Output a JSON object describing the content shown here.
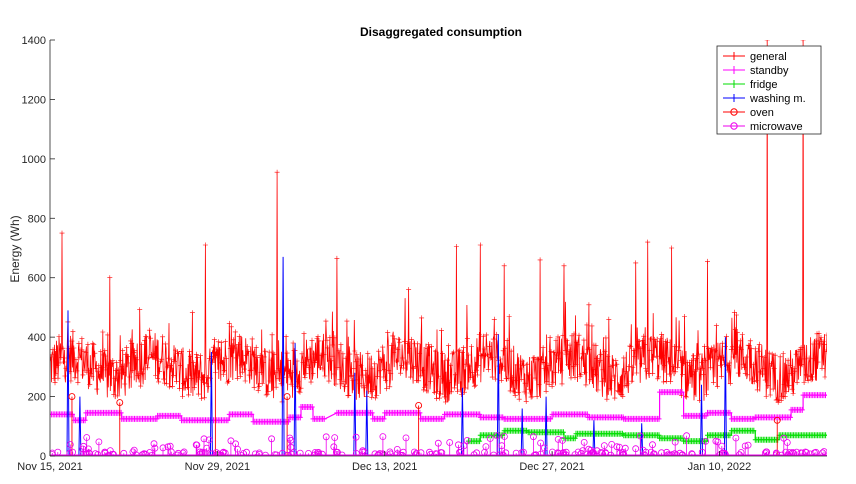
{
  "chart_data": {
    "type": "line",
    "title": "Disaggregated consumption",
    "xlabel": "",
    "ylabel": "Energy (Wh)",
    "ylim": [
      0,
      1400
    ],
    "yticks": [
      0,
      200,
      400,
      600,
      800,
      1000,
      1200,
      1400
    ],
    "x_range": [
      "2021-11-15",
      "2022-01-19"
    ],
    "xticks": [
      "Nov 15, 2021",
      "Nov 29, 2021",
      "Dec 13, 2021",
      "Dec 27, 2021",
      "Jan 10, 2022"
    ],
    "legend_position": "top-right",
    "grid": false,
    "series": [
      {
        "name": "general",
        "color": "#ff0000",
        "marker": "plus",
        "style": "noisy",
        "description_values": {
          "baseline": 300,
          "min": 150,
          "spikes": [
            {
              "date": "2021-11-16",
              "value": 750
            },
            {
              "date": "2021-11-20",
              "value": 600
            },
            {
              "date": "2021-11-28",
              "value": 710
            },
            {
              "date": "2021-12-04",
              "value": 955
            },
            {
              "date": "2021-12-09",
              "value": 665
            },
            {
              "date": "2021-12-15",
              "value": 560
            },
            {
              "date": "2021-12-19",
              "value": 705
            },
            {
              "date": "2021-12-21",
              "value": 710
            },
            {
              "date": "2021-12-23",
              "value": 640
            },
            {
              "date": "2021-12-26",
              "value": 660
            },
            {
              "date": "2021-12-28",
              "value": 640
            },
            {
              "date": "2022-01-03",
              "value": 650
            },
            {
              "date": "2022-01-04",
              "value": 720
            },
            {
              "date": "2022-01-06",
              "value": 700
            },
            {
              "date": "2022-01-09",
              "value": 655
            },
            {
              "date": "2022-01-14",
              "value": 1400
            },
            {
              "date": "2022-01-17",
              "value": 1400
            }
          ]
        }
      },
      {
        "name": "standby",
        "color": "#ff00ff",
        "marker": "plus",
        "style": "steps",
        "steps": [
          {
            "start": "2021-11-15",
            "end": "2021-11-17",
            "value": 140
          },
          {
            "start": "2021-11-17",
            "end": "2021-11-18",
            "value": 120
          },
          {
            "start": "2021-11-18",
            "end": "2021-11-21",
            "value": 145
          },
          {
            "start": "2021-11-21",
            "end": "2021-11-24",
            "value": 125
          },
          {
            "start": "2021-11-24",
            "end": "2021-11-26",
            "value": 135
          },
          {
            "start": "2021-11-26",
            "end": "2021-11-30",
            "value": 120
          },
          {
            "start": "2021-11-30",
            "end": "2021-12-02",
            "value": 140
          },
          {
            "start": "2021-12-02",
            "end": "2021-12-05",
            "value": 115
          },
          {
            "start": "2021-12-05",
            "end": "2021-12-06",
            "value": 130
          },
          {
            "start": "2021-12-06",
            "end": "2021-12-07",
            "value": 165
          },
          {
            "start": "2021-12-07",
            "end": "2021-12-08",
            "value": 125
          },
          {
            "start": "2021-12-09",
            "end": "2021-12-12",
            "value": 145
          },
          {
            "start": "2021-12-12",
            "end": "2021-12-13",
            "value": 125
          },
          {
            "start": "2021-12-13",
            "end": "2021-12-16",
            "value": 145
          },
          {
            "start": "2021-12-16",
            "end": "2021-12-18",
            "value": 125
          },
          {
            "start": "2021-12-18",
            "end": "2021-12-21",
            "value": 140
          },
          {
            "start": "2021-12-21",
            "end": "2021-12-23",
            "value": 130
          },
          {
            "start": "2021-12-23",
            "end": "2021-12-27",
            "value": 125
          },
          {
            "start": "2021-12-27",
            "end": "2021-12-30",
            "value": 140
          },
          {
            "start": "2021-12-30",
            "end": "2022-01-02",
            "value": 130
          },
          {
            "start": "2022-01-02",
            "end": "2022-01-05",
            "value": 125
          },
          {
            "start": "2022-01-05",
            "end": "2022-01-07",
            "value": 215
          },
          {
            "start": "2022-01-07",
            "end": "2022-01-09",
            "value": 135
          },
          {
            "start": "2022-01-09",
            "end": "2022-01-11",
            "value": 145
          },
          {
            "start": "2022-01-11",
            "end": "2022-01-13",
            "value": 125
          },
          {
            "start": "2022-01-13",
            "end": "2022-01-16",
            "value": 130
          },
          {
            "start": "2022-01-16",
            "end": "2022-01-17",
            "value": 155
          },
          {
            "start": "2022-01-17",
            "end": "2022-01-19",
            "value": 205
          }
        ]
      },
      {
        "name": "fridge",
        "color": "#00dd00",
        "marker": "plus",
        "style": "steps",
        "steps": [
          {
            "start": "2021-12-20",
            "end": "2021-12-21",
            "value": 50
          },
          {
            "start": "2021-12-21",
            "end": "2021-12-23",
            "value": 70
          },
          {
            "start": "2021-12-23",
            "end": "2021-12-25",
            "value": 85
          },
          {
            "start": "2021-12-25",
            "end": "2021-12-28",
            "value": 80
          },
          {
            "start": "2021-12-28",
            "end": "2021-12-29",
            "value": 60
          },
          {
            "start": "2021-12-29",
            "end": "2022-01-02",
            "value": 75
          },
          {
            "start": "2022-01-02",
            "end": "2022-01-05",
            "value": 70
          },
          {
            "start": "2022-01-05",
            "end": "2022-01-07",
            "value": 60
          },
          {
            "start": "2022-01-07",
            "end": "2022-01-09",
            "value": 50
          },
          {
            "start": "2022-01-09",
            "end": "2022-01-11",
            "value": 70
          },
          {
            "start": "2022-01-11",
            "end": "2022-01-13",
            "value": 85
          },
          {
            "start": "2022-01-13",
            "end": "2022-01-15",
            "value": 55
          },
          {
            "start": "2022-01-15",
            "end": "2022-01-19",
            "value": 70
          }
        ]
      },
      {
        "name": "washing m.",
        "color": "#0000ff",
        "marker": "plus",
        "style": "spikes",
        "spikes": [
          {
            "date": "2021-11-16",
            "value": 490
          },
          {
            "date": "2021-11-17",
            "value": 200
          },
          {
            "date": "2021-11-28",
            "value": 350
          },
          {
            "date": "2021-12-04",
            "value": 670
          },
          {
            "date": "2021-12-05",
            "value": 380
          },
          {
            "date": "2021-12-10",
            "value": 280
          },
          {
            "date": "2021-12-11",
            "value": 220
          },
          {
            "date": "2021-12-19",
            "value": 230
          },
          {
            "date": "2021-12-22",
            "value": 410
          },
          {
            "date": "2021-12-24",
            "value": 160
          },
          {
            "date": "2021-12-26",
            "value": 200
          },
          {
            "date": "2021-12-30",
            "value": 120
          },
          {
            "date": "2022-01-03",
            "value": 110
          },
          {
            "date": "2022-01-08",
            "value": 240
          },
          {
            "date": "2022-01-10",
            "value": 400
          }
        ]
      },
      {
        "name": "oven",
        "color": "#ff0000",
        "marker": "circle",
        "style": "stems",
        "stems": [
          {
            "date": "2021-11-16",
            "value": 200
          },
          {
            "date": "2021-11-20",
            "value": 180
          },
          {
            "date": "2021-11-28",
            "value": 350
          },
          {
            "date": "2021-12-04",
            "value": 200
          },
          {
            "date": "2021-12-15",
            "value": 170
          },
          {
            "date": "2022-01-14",
            "value": 120
          }
        ]
      },
      {
        "name": "microwave",
        "color": "#ee00ee",
        "marker": "circle",
        "style": "stems",
        "stems_note": "frequent small events between 0 and 70 Wh across the whole range"
      }
    ]
  }
}
